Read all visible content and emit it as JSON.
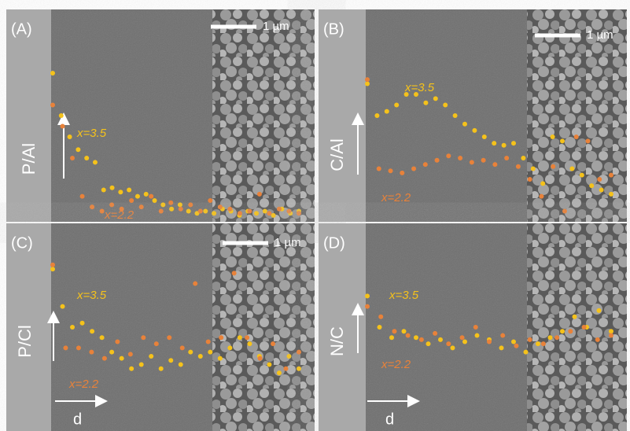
{
  "panels": [
    {
      "label": "(A)",
      "scale_bar": "1 µm",
      "axis_label": "P/Al",
      "series": [
        {
          "name": "x=3.5",
          "color": "#f5c21b",
          "values": [
            0.7,
            0.5,
            0.4,
            0.34,
            0.3,
            0.28,
            0.15,
            0.16,
            0.14,
            0.15,
            0.12,
            0.13,
            0.1,
            0.08,
            0.06,
            0.08,
            0.05,
            0.04,
            0.05,
            0.04,
            0.06,
            0.05,
            0.03,
            0.05,
            0.04,
            0.05,
            0.03,
            0.06,
            0.04,
            0.05
          ]
        },
        {
          "name": "x=2.2",
          "color": "#e8823a",
          "values": [
            0.55,
            0.45,
            0.3,
            0.12,
            0.07,
            0.05,
            0.08,
            0.06,
            0.1,
            0.07,
            0.12,
            0.05,
            0.09,
            0.06,
            0.08,
            0.05,
            0.1,
            0.07,
            0.06,
            0.04,
            0.05,
            0.13,
            0.04,
            0.06,
            0.05,
            0.04
          ]
        }
      ]
    },
    {
      "label": "(B)",
      "scale_bar": "1 µm",
      "axis_label": "C/Al",
      "series": [
        {
          "name": "x=3.5",
          "color": "#f5c21b",
          "values": [
            0.65,
            0.5,
            0.52,
            0.55,
            0.6,
            0.6,
            0.56,
            0.58,
            0.55,
            0.5,
            0.46,
            0.43,
            0.4,
            0.37,
            0.36,
            0.37,
            0.3,
            0.25,
            0.18,
            0.4,
            0.38,
            0.25,
            0.22,
            0.17,
            0.15,
            0.13
          ]
        },
        {
          "name": "x=2.2",
          "color": "#e8823a",
          "values": [
            0.67,
            0.25,
            0.24,
            0.23,
            0.25,
            0.27,
            0.29,
            0.31,
            0.3,
            0.28,
            0.29,
            0.27,
            0.3,
            0.26,
            0.2,
            0.12,
            0.26,
            0.05,
            0.4,
            0.38,
            0.2,
            0.22
          ]
        }
      ]
    },
    {
      "label": "(C)",
      "scale_bar": "1 µm",
      "axis_label": "P/Cl",
      "direction": "d",
      "series": [
        {
          "name": "x=3.5",
          "color": "#f5c21b",
          "values": [
            0.78,
            0.6,
            0.5,
            0.52,
            0.48,
            0.45,
            0.38,
            0.35,
            0.3,
            0.32,
            0.36,
            0.3,
            0.34,
            0.32,
            0.38,
            0.36,
            0.38,
            0.35,
            0.4,
            0.45,
            0.42,
            0.36,
            0.32,
            0.28,
            0.36,
            0.3
          ]
        },
        {
          "name": "x=2.2",
          "color": "#e8823a",
          "values": [
            0.8,
            0.4,
            0.4,
            0.38,
            0.35,
            0.43,
            0.37,
            0.45,
            0.42,
            0.45,
            0.4,
            0.71,
            0.43,
            0.45,
            0.76,
            0.45,
            0.35,
            0.42,
            0.3,
            0.38
          ]
        }
      ]
    },
    {
      "label": "(D)",
      "axis_label": "N/C",
      "direction": "d",
      "series": [
        {
          "name": "x=3.5",
          "color": "#f5c21b",
          "values": [
            0.65,
            0.5,
            0.45,
            0.48,
            0.45,
            0.42,
            0.44,
            0.4,
            0.43,
            0.46,
            0.44,
            0.4,
            0.43,
            0.38,
            0.42,
            0.45,
            0.48,
            0.55,
            0.5,
            0.58,
            0.48
          ]
        },
        {
          "name": "x=2.2",
          "color": "#e8823a",
          "values": [
            0.6,
            0.55,
            0.48,
            0.46,
            0.44,
            0.47,
            0.42,
            0.45,
            0.5,
            0.43,
            0.46,
            0.41,
            0.44,
            0.42,
            0.45,
            0.48,
            0.5,
            0.44,
            0.46
          ]
        }
      ]
    }
  ]
}
